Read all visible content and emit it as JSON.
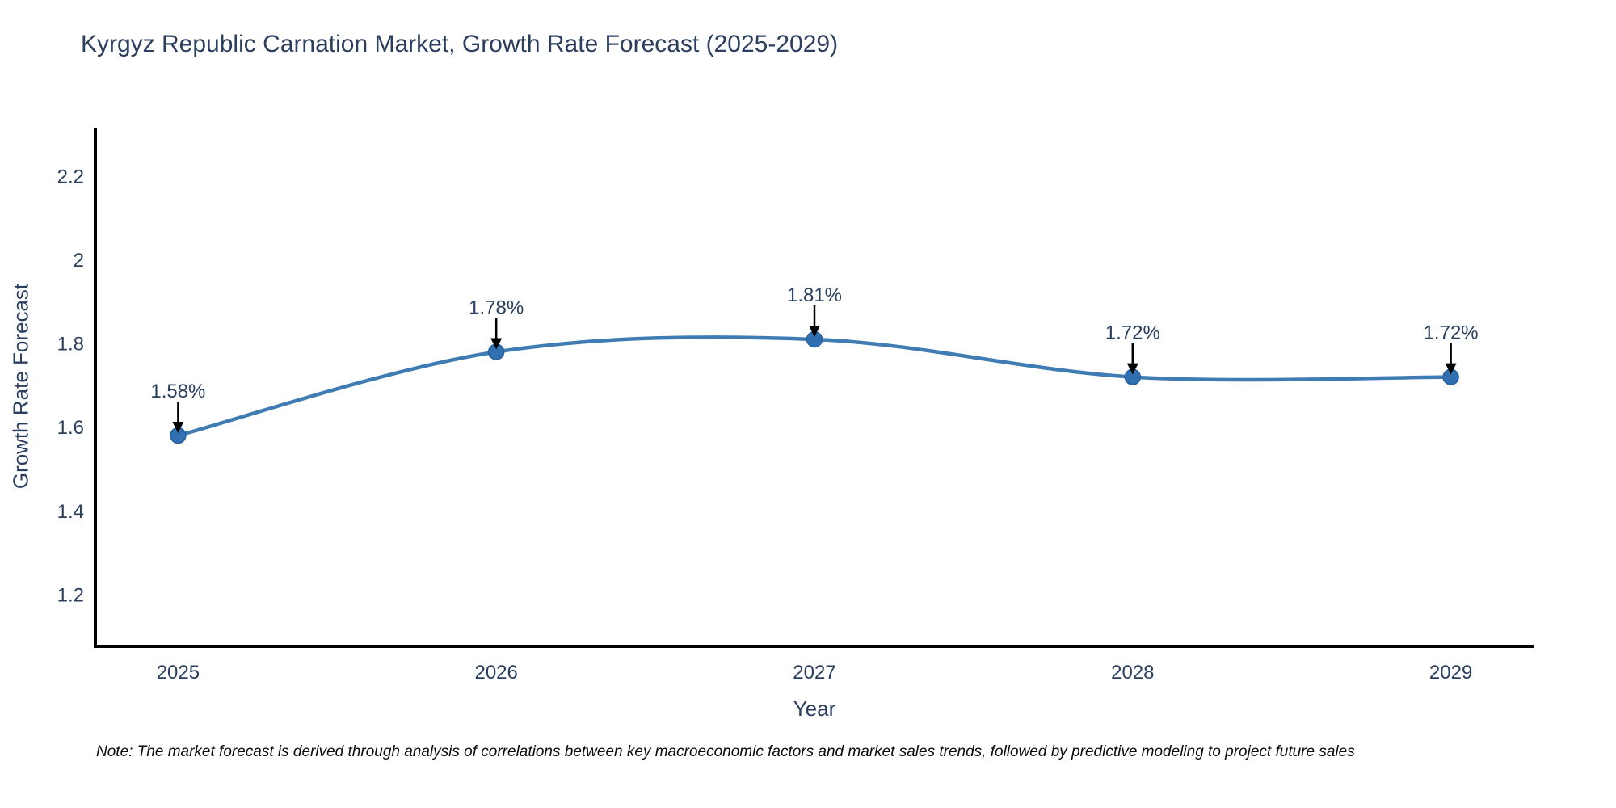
{
  "title": "Kyrgyz Republic Carnation Market, Growth Rate Forecast (2025-2029)",
  "note": "Note: The market forecast is derived through analysis of correlations between key macroeconomic factors and market sales trends, followed by predictive modeling to project future sales",
  "chart_data": {
    "type": "line",
    "title": "Kyrgyz Republic Carnation Market, Growth Rate Forecast (2025-2029)",
    "xlabel": "Year",
    "ylabel": "Growth Rate Forecast",
    "x": [
      2025,
      2026,
      2027,
      2028,
      2029
    ],
    "x_tick_labels": [
      "2025",
      "2026",
      "2027",
      "2028",
      "2029"
    ],
    "series": [
      {
        "name": "Growth Rate Forecast",
        "values": [
          1.58,
          1.78,
          1.81,
          1.72,
          1.72
        ]
      }
    ],
    "point_labels": [
      "1.58%",
      "1.78%",
      "1.81%",
      "1.72%",
      "1.72%"
    ],
    "y_ticks": [
      2.2,
      2.0,
      1.8,
      1.6,
      1.4,
      1.2
    ],
    "y_tick_labels": [
      "2.2",
      "2",
      "1.8",
      "1.6",
      "1.4",
      "1.2"
    ],
    "xlim": [
      2024.74,
      2029.26
    ],
    "ylim": [
      1.076,
      2.316
    ],
    "grid": false,
    "legend": "none",
    "line_shape": "spline",
    "colors": {
      "line": "#3e7cb3",
      "marker": "#3070b0",
      "marker_edge": "#27619e",
      "arrow": "#000000",
      "axis": "#000000",
      "text": "#2a3f5f"
    }
  }
}
